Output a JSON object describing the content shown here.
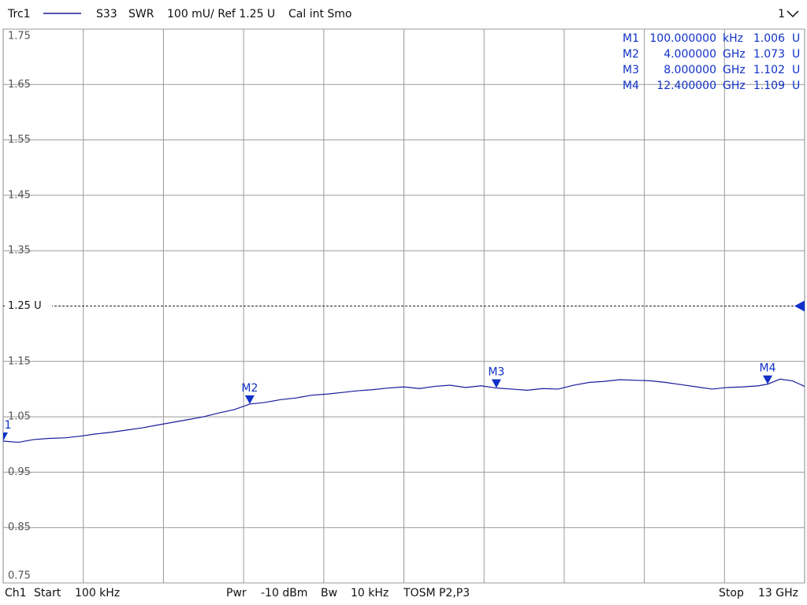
{
  "chart_data": {
    "type": "line",
    "header": {
      "trace": "Trc1",
      "parameter": "S33",
      "format": "SWR",
      "scale": "100 mU/ Ref 1.25 U",
      "status": "Cal int Smo",
      "window": "1"
    },
    "footer": {
      "channel": "Ch1",
      "start_label": "Start",
      "start": "100 kHz",
      "power_label": "Pwr",
      "power": "-10 dBm",
      "bw_label": "Bw",
      "bw": "10 kHz",
      "cal": "TOSM P2,P3",
      "stop_label": "Stop",
      "stop": "13 GHz"
    },
    "xlim": [
      0.0001,
      13
    ],
    "ylim": [
      0.75,
      1.75
    ],
    "yticks": [
      1.75,
      1.65,
      1.55,
      1.45,
      1.35,
      {
        "value": 1.25,
        "label": "1.25 U"
      },
      1.15,
      1.05,
      0.95,
      0.85,
      0.75
    ],
    "grid": true,
    "series": [
      {
        "name": "Trc1",
        "color": "#1a1a9c",
        "x": [
          0.0001,
          0.25,
          0.5,
          0.75,
          1.0,
          1.25,
          1.5,
          1.75,
          2.0,
          2.25,
          2.5,
          2.75,
          3.0,
          3.25,
          3.5,
          3.75,
          4.0,
          4.25,
          4.5,
          4.75,
          5.0,
          5.25,
          5.5,
          5.75,
          6.0,
          6.25,
          6.5,
          6.75,
          7.0,
          7.25,
          7.5,
          7.75,
          8.0,
          8.25,
          8.5,
          8.75,
          9.0,
          9.25,
          9.5,
          9.75,
          10.0,
          10.25,
          10.5,
          10.75,
          11.0,
          11.25,
          11.5,
          11.75,
          12.0,
          12.25,
          12.4,
          12.6,
          12.8,
          13
        ],
        "values": [
          1.006,
          1.004,
          1.009,
          1.011,
          1.012,
          1.015,
          1.019,
          1.022,
          1.026,
          1.03,
          1.035,
          1.04,
          1.045,
          1.05,
          1.057,
          1.063,
          1.073,
          1.076,
          1.081,
          1.084,
          1.089,
          1.091,
          1.094,
          1.097,
          1.099,
          1.102,
          1.104,
          1.101,
          1.105,
          1.107,
          1.103,
          1.106,
          1.102,
          1.1,
          1.098,
          1.101,
          1.1,
          1.107,
          1.112,
          1.114,
          1.117,
          1.116,
          1.115,
          1.112,
          1.108,
          1.104,
          1.1,
          1.103,
          1.104,
          1.106,
          1.109,
          1.118,
          1.115,
          1.105
        ]
      }
    ],
    "marker_color": "#1030c8",
    "markers": [
      {
        "name": "M1",
        "x": 0.0001,
        "value": 1.006,
        "x_label": "100.000000",
        "x_unit": "kHz",
        "unit": "U"
      },
      {
        "name": "M2",
        "x": 4,
        "value": 1.073,
        "x_label": "4.000000",
        "x_unit": "GHz",
        "unit": "U"
      },
      {
        "name": "M3",
        "x": 8,
        "value": 1.102,
        "x_label": "8.000000",
        "x_unit": "GHz",
        "unit": "U"
      },
      {
        "name": "M4",
        "x": 12.4,
        "value": 1.109,
        "x_label": "12.400000",
        "x_unit": "GHz",
        "unit": "U"
      }
    ]
  }
}
